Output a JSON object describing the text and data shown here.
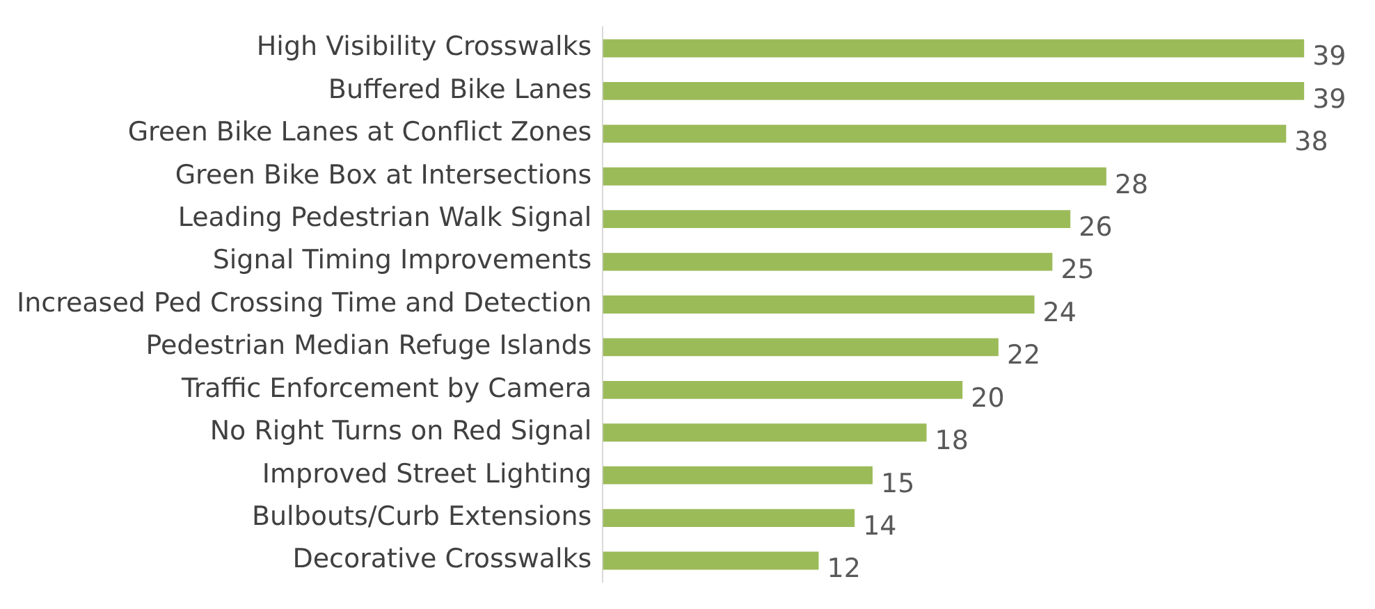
{
  "chart_data": {
    "type": "bar",
    "orientation": "horizontal",
    "categories": [
      "High Visibility Crosswalks",
      "Buffered Bike Lanes",
      "Green Bike Lanes at Conflict Zones",
      "Green Bike Box at Intersections",
      "Leading Pedestrian Walk Signal",
      "Signal Timing Improvements",
      "Increased Ped Crossing Time and Detection",
      "Pedestrian Median Refuge Islands",
      "Traffic Enforcement by Camera",
      "No Right Turns on Red Signal",
      "Improved Street Lighting",
      "Bulbouts/Curb Extensions",
      "Decorative Crosswalks"
    ],
    "values": [
      39,
      39,
      38,
      28,
      26,
      25,
      24,
      22,
      20,
      18,
      15,
      14,
      12
    ],
    "color": "#9bbb59",
    "data_labels": true,
    "legend": false,
    "tick_labels": "y"
  }
}
